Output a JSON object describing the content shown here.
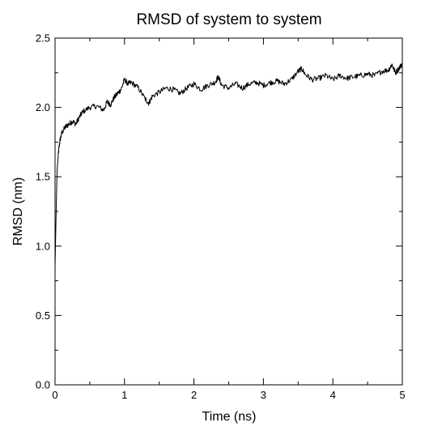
{
  "chart_data": {
    "type": "line",
    "title": "RMSD of system to system",
    "xlabel": "Time (ns)",
    "ylabel": "RMSD (nm)",
    "xlim": [
      0,
      5
    ],
    "ylim": [
      0,
      2.5
    ],
    "x_ticks": [
      0,
      1,
      2,
      3,
      4,
      5
    ],
    "x_tick_labels": [
      "0",
      "1",
      "2",
      "3",
      "4",
      "5"
    ],
    "y_ticks": [
      0,
      0.5,
      1,
      1.5,
      2,
      2.5
    ],
    "y_tick_labels": [
      "0.0",
      "0.5",
      "1.0",
      "1.5",
      "2.0",
      "2.5"
    ],
    "grid": false,
    "legend": "none",
    "series": [
      {
        "color": "#000000",
        "x": [
          0,
          0.01,
          0.02,
          0.03,
          0.05,
          0.07,
          0.1,
          0.15,
          0.2,
          0.25,
          0.3,
          0.35,
          0.4,
          0.5,
          0.6,
          0.7,
          0.75,
          0.8,
          0.85,
          0.9,
          0.95,
          1.0,
          1.05,
          1.1,
          1.2,
          1.3,
          1.35,
          1.4,
          1.5,
          1.6,
          1.7,
          1.8,
          1.9,
          2.0,
          2.1,
          2.2,
          2.3,
          2.35,
          2.4,
          2.5,
          2.6,
          2.7,
          2.8,
          2.9,
          3.0,
          3.1,
          3.2,
          3.3,
          3.4,
          3.5,
          3.55,
          3.6,
          3.7,
          3.8,
          3.9,
          4.0,
          4.1,
          4.2,
          4.3,
          4.4,
          4.5,
          4.6,
          4.7,
          4.8,
          4.85,
          4.9,
          4.95,
          5.0
        ],
        "y": [
          0.85,
          1.1,
          1.35,
          1.55,
          1.68,
          1.76,
          1.82,
          1.86,
          1.88,
          1.9,
          1.88,
          1.93,
          1.97,
          2.0,
          2.01,
          1.98,
          2.04,
          2.02,
          2.07,
          2.1,
          2.13,
          2.2,
          2.17,
          2.18,
          2.14,
          2.06,
          2.03,
          2.08,
          2.11,
          2.14,
          2.13,
          2.1,
          2.14,
          2.17,
          2.13,
          2.16,
          2.18,
          2.22,
          2.16,
          2.14,
          2.17,
          2.14,
          2.17,
          2.18,
          2.16,
          2.18,
          2.19,
          2.17,
          2.2,
          2.26,
          2.28,
          2.24,
          2.2,
          2.21,
          2.23,
          2.2,
          2.23,
          2.21,
          2.22,
          2.23,
          2.24,
          2.23,
          2.26,
          2.27,
          2.31,
          2.25,
          2.28,
          2.32
        ]
      }
    ]
  }
}
